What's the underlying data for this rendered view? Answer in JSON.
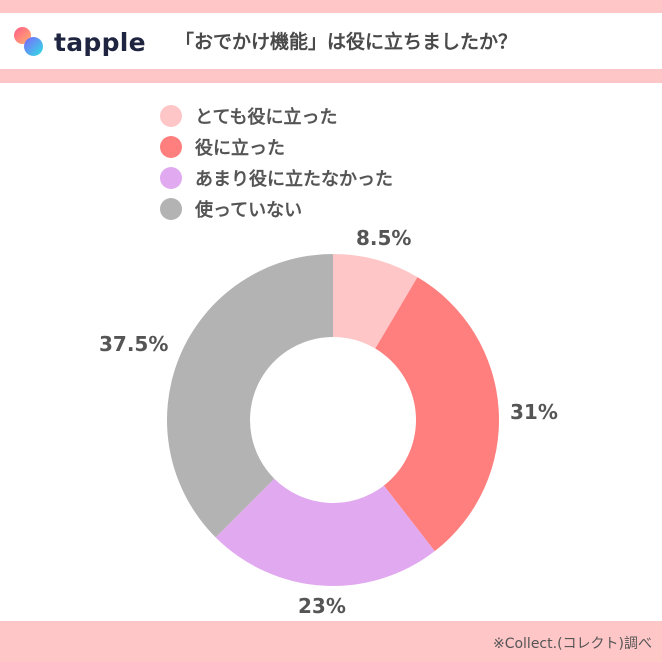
{
  "header": {
    "logo_text": "tapple",
    "title": "「おでかけ機能」は役に立ちましたか？"
  },
  "legend": {
    "items": [
      {
        "label": "とても役に立った",
        "color": "#fec6c7"
      },
      {
        "label": "役に立った",
        "color": "#ff7f7f"
      },
      {
        "label": "あまり役に立たなかった",
        "color": "#e1a9ef"
      },
      {
        "label": "使っていない",
        "color": "#b3b3b3"
      }
    ]
  },
  "labels": {
    "very_useful": "8.5%",
    "useful": "31%",
    "not_very_useful": "23%",
    "not_used": "37.5%"
  },
  "footer": {
    "note": "※Collect.(コレクト)調べ"
  },
  "chart_data": {
    "type": "pie",
    "subtype": "donut",
    "title": "「おでかけ機能」は役に立ちましたか？",
    "categories": [
      "とても役に立った",
      "役に立った",
      "あまり役に立たなかった",
      "使っていない"
    ],
    "values": [
      8.5,
      31,
      23,
      37.5
    ],
    "unit": "%",
    "colors": [
      "#fec6c7",
      "#ff7f7f",
      "#e1a9ef",
      "#b3b3b3"
    ],
    "start_angle": "12 o'clock, clockwise",
    "legend_position": "top",
    "source": "※Collect.(コレクト)調べ"
  }
}
